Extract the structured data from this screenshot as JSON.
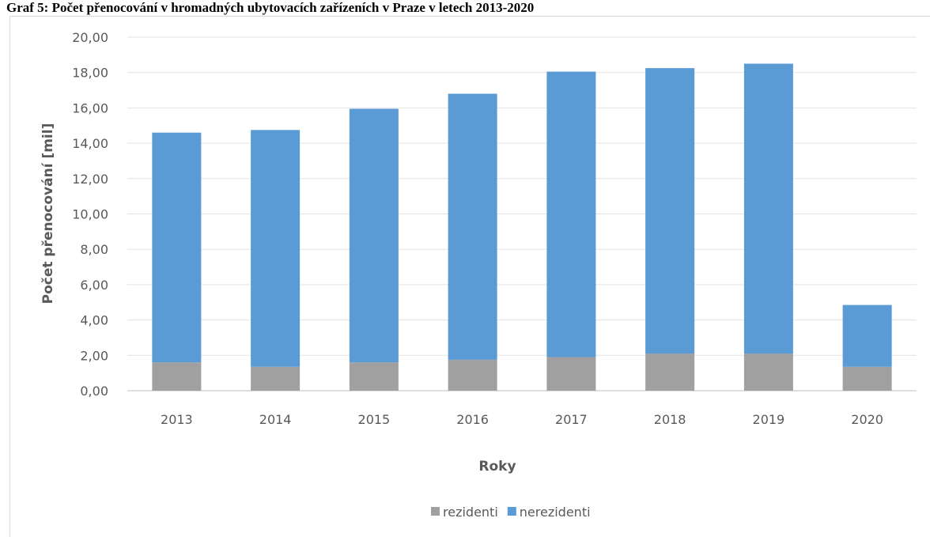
{
  "chart_data": {
    "type": "bar",
    "stacked": true,
    "title": "Graf 5: Počet přenocování v hromadných ubytovacích zařízeních v Praze v letech 2013-2020",
    "xlabel": "Roky",
    "ylabel": "Počet přenocování [mil]",
    "categories": [
      "2013",
      "2014",
      "2015",
      "2016",
      "2017",
      "2018",
      "2019",
      "2020"
    ],
    "series": [
      {
        "name": "rezidenti",
        "color": "#a0a0a0",
        "values": [
          1.6,
          1.35,
          1.6,
          1.75,
          1.9,
          2.1,
          2.1,
          1.35
        ]
      },
      {
        "name": "nerezidenti",
        "color": "#5b9bd5",
        "values": [
          13.0,
          13.4,
          14.35,
          15.05,
          16.15,
          16.15,
          16.4,
          3.5
        ]
      }
    ],
    "ylim": [
      0,
      20
    ],
    "yticks": [
      {
        "value": 0,
        "label": "0,00"
      },
      {
        "value": 2,
        "label": "2,00"
      },
      {
        "value": 4,
        "label": "4,00"
      },
      {
        "value": 6,
        "label": "6,00"
      },
      {
        "value": 8,
        "label": "8,00"
      },
      {
        "value": 10,
        "label": "10,00"
      },
      {
        "value": 12,
        "label": "12,00"
      },
      {
        "value": 14,
        "label": "14,00"
      },
      {
        "value": 16,
        "label": "16,00"
      },
      {
        "value": 18,
        "label": "18,00"
      },
      {
        "value": 20,
        "label": "20,00"
      }
    ],
    "grid": true,
    "legend": "bottom"
  }
}
